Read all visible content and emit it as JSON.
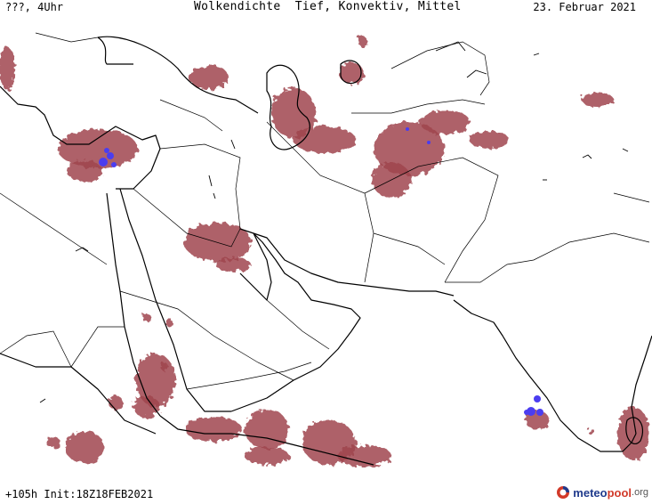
{
  "header": {
    "left": "???, 4Uhr",
    "title": "Wolkendichte  Tief, Konvektiv, Mittel",
    "date": "23. Februar 2021"
  },
  "footer": {
    "run_info": "+105h Init:18Z18FEB2021",
    "logo": {
      "part1": "meteo",
      "part2": "pool",
      "part3": ".org"
    }
  },
  "colors": {
    "cloud": "#a0474f",
    "cloud_dense": "#7a2c37",
    "convective": "#4b3df0",
    "outline": "#000000"
  },
  "legend_icon": "meteopool-logo-icon"
}
